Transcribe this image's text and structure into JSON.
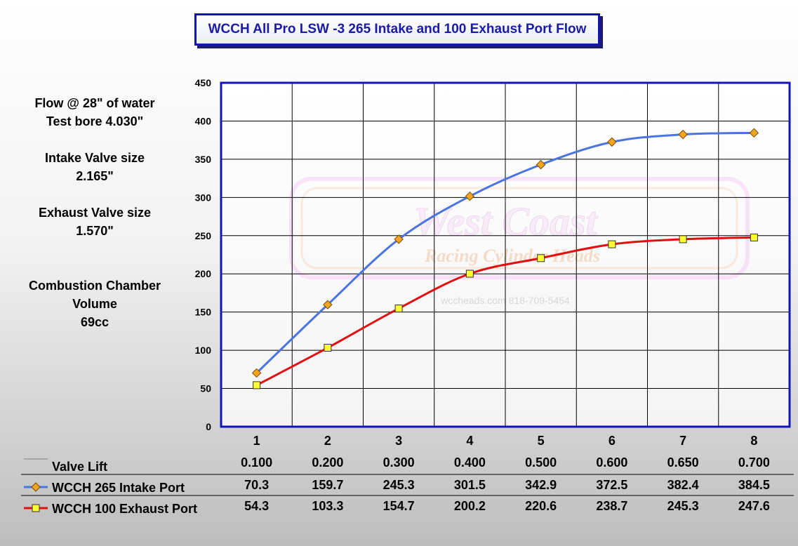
{
  "info": {
    "flow_line1": "Flow @ 28\" of water",
    "flow_line2": "Test bore 4.030\"",
    "intake_label": "Intake Valve size",
    "intake_value": "2.165\"",
    "exhaust_label": "Exhaust Valve size",
    "exhaust_value": "1.570\"",
    "chamber_line1": "Combustion Chamber",
    "chamber_line2": "Volume",
    "chamber_value": "69cc"
  },
  "watermark": {
    "line1": "West Coast",
    "line2": "Racing Cylinder Heads",
    "line3": "wccheads.com 818-709-5454"
  },
  "chart_data": {
    "type": "line",
    "title": "WCCH All Pro LSW -3 265 Intake and 100 Exhaust Port Flow",
    "categories": [
      "1",
      "2",
      "3",
      "4",
      "5",
      "6",
      "7",
      "8"
    ],
    "ylim": [
      0,
      450
    ],
    "yticks": [
      0,
      50,
      100,
      150,
      200,
      250,
      300,
      350,
      400,
      450
    ],
    "grid": true,
    "valve_lift": {
      "name": "Valve Lift",
      "values": [
        "0.100",
        "0.200",
        "0.300",
        "0.400",
        "0.500",
        "0.600",
        "0.650",
        "0.700"
      ],
      "color": "#808080"
    },
    "series": [
      {
        "name": "WCCH 265 Intake  Port",
        "values": [
          70.3,
          159.7,
          245.3,
          301.5,
          342.9,
          372.5,
          382.4,
          384.5
        ],
        "labels": [
          "70.3",
          "159.7",
          "245.3",
          "301.5",
          "342.9",
          "372.5",
          "382.4",
          "384.5"
        ],
        "color": "#4a74e0",
        "marker": "diamond",
        "marker_color": "#f5a51e"
      },
      {
        "name": "WCCH 100 Exhaust Port",
        "values": [
          54.3,
          103.3,
          154.7,
          200.2,
          220.6,
          238.7,
          245.3,
          247.6
        ],
        "labels": [
          "54.3",
          "103.3",
          "154.7",
          "200.2",
          "220.6",
          "238.7",
          "245.3",
          "247.6"
        ],
        "color": "#e01010",
        "marker": "square",
        "marker_color": "#ffff33"
      }
    ]
  }
}
